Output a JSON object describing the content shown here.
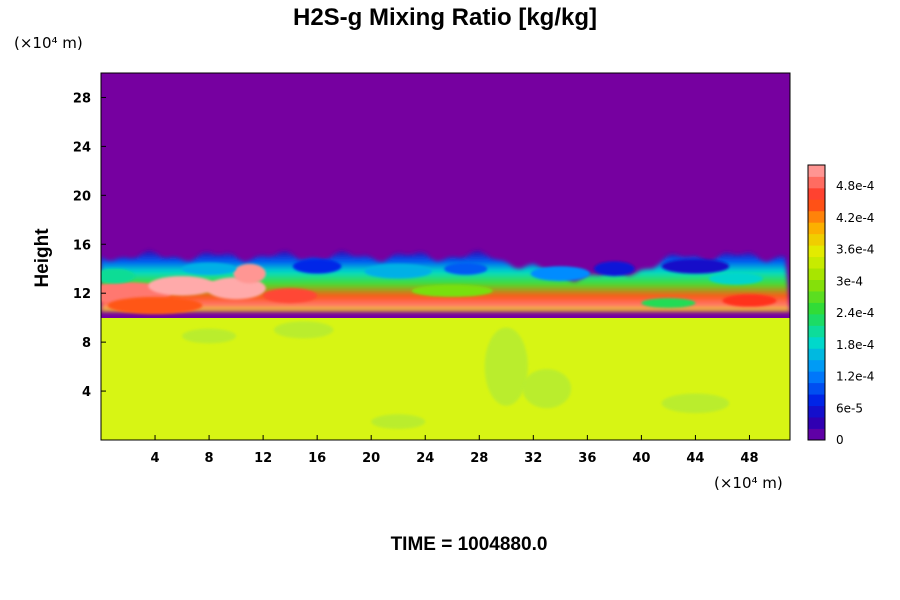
{
  "chart_data": {
    "type": "heatmap",
    "title": "H2S-g Mixing Ratio [kg/kg]",
    "ylabel": "Height",
    "xlabel": "",
    "x_unit": "(×10⁴ m)",
    "y_unit": "(×10⁴ m)",
    "x_ticks": [
      4,
      8,
      12,
      16,
      20,
      24,
      28,
      32,
      36,
      40,
      44,
      48
    ],
    "y_ticks": [
      4,
      8,
      12,
      16,
      20,
      24,
      28
    ],
    "xlim": [
      0,
      51
    ],
    "ylim": [
      0,
      30
    ],
    "colorbar": {
      "ticks": [
        0,
        6e-05,
        0.00012,
        0.00018,
        0.00024,
        0.0003,
        0.00036,
        0.00042,
        0.00048
      ],
      "tick_labels": [
        "0",
        "6e-5",
        "1.2e-4",
        "1.8e-4",
        "2.4e-4",
        "3e-4",
        "3.6e-4",
        "4.2e-4",
        "4.8e-4"
      ],
      "range": [
        0,
        0.00052
      ],
      "levels": 24
    },
    "regions": [
      {
        "name": "upper",
        "y_range": [
          15,
          30
        ],
        "value": 0
      },
      {
        "name": "mixing-layer",
        "y_range": [
          10.5,
          15
        ],
        "value": "mixed 0 to 5.2e-4"
      },
      {
        "name": "lower",
        "y_range": [
          0,
          10.5
        ],
        "value": 0.00035
      }
    ],
    "time_label": "TIME = 1004880.0"
  }
}
